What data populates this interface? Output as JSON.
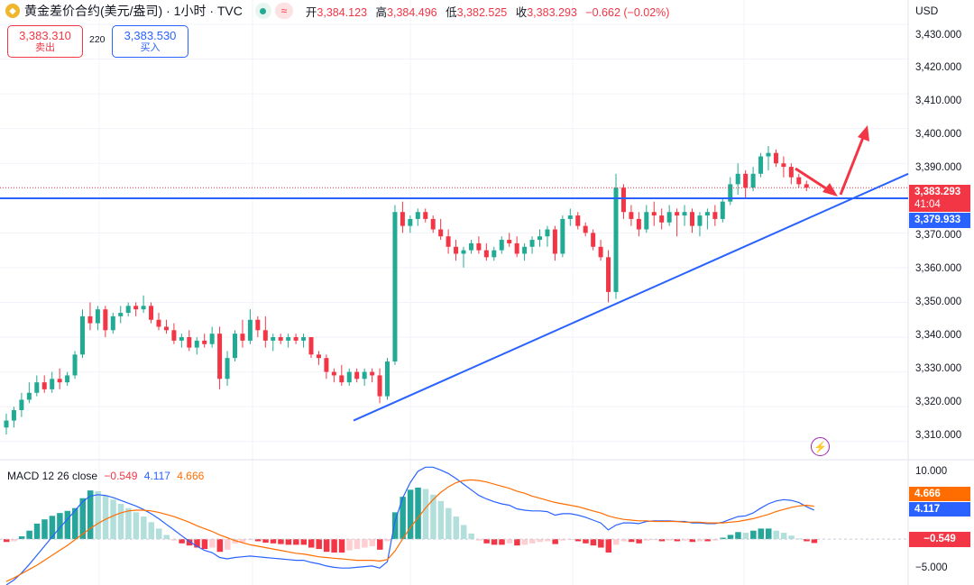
{
  "header": {
    "logo_glyph": "◆",
    "title": "黄金差价合约(美元/盎司) · 1小时 · TVC",
    "wave_glyph": "≈",
    "ohlc": [
      {
        "label": "开",
        "value": "3,384.123"
      },
      {
        "label": "高",
        "value": "3,384.496"
      },
      {
        "label": "低",
        "value": "3,382.525"
      },
      {
        "label": "收",
        "value": "3,383.293"
      }
    ],
    "change": "−0.662 (−0.02%)"
  },
  "trade": {
    "sell_price": "3,383.310",
    "sell_label": "卖出",
    "spread": "220",
    "buy_price": "3,383.530",
    "buy_label": "买入"
  },
  "currency": "USD",
  "price_axis": {
    "labels": [
      "3,430.000",
      "3,420.000",
      "3,410.000",
      "3,400.000",
      "3,390.000",
      "3,370.000",
      "3,360.000",
      "3,350.000",
      "3,340.000",
      "3,330.000",
      "3,320.000",
      "3,310.000"
    ]
  },
  "price_tags": {
    "last_price": "3,383.293",
    "countdown": "41:04",
    "line_price": "3,379.933"
  },
  "macd": {
    "name": "MACD 12 26 close",
    "hist": "−0.549",
    "macd": "4.117",
    "signal": "4.666",
    "axis": [
      "10.000",
      "−5.000"
    ],
    "tags": {
      "signal": "4.666",
      "macd": "4.117",
      "hist": "−0.549"
    }
  },
  "colors": {
    "up": "#22ab94",
    "down": "#f23645",
    "trendline": "#2962ff",
    "macd_line": "#2962ff",
    "signal_line": "#ff6d00",
    "arrow": "#f23645"
  },
  "bolt_glyph": "⚡",
  "chart_data": {
    "type": "candlestick",
    "timeframe": "1小时",
    "ylim": [
      3305,
      3437
    ],
    "candles_ohlc": [
      [
        3314,
        3318,
        3312,
        3316
      ],
      [
        3316,
        3320,
        3314,
        3319
      ],
      [
        3319,
        3324,
        3317,
        3322
      ],
      [
        3322,
        3327,
        3321,
        3324
      ],
      [
        3324,
        3329,
        3323,
        3327
      ],
      [
        3327,
        3329,
        3324,
        3325
      ],
      [
        3325,
        3330,
        3324,
        3328
      ],
      [
        3328,
        3331,
        3325,
        3327
      ],
      [
        3327,
        3330,
        3326,
        3329
      ],
      [
        3329,
        3336,
        3328,
        3335
      ],
      [
        3335,
        3348,
        3334,
        3346
      ],
      [
        3346,
        3350,
        3342,
        3344
      ],
      [
        3344,
        3349,
        3342,
        3348
      ],
      [
        3348,
        3349,
        3340,
        3342
      ],
      [
        3342,
        3347,
        3341,
        3346
      ],
      [
        3346,
        3349,
        3344,
        3347
      ],
      [
        3347,
        3350,
        3346,
        3349
      ],
      [
        3349,
        3350,
        3346,
        3348
      ],
      [
        3348,
        3352,
        3347,
        3349
      ],
      [
        3349,
        3350,
        3344,
        3345
      ],
      [
        3345,
        3347,
        3342,
        3343
      ],
      [
        3343,
        3345,
        3341,
        3342
      ],
      [
        3342,
        3344,
        3338,
        3339
      ],
      [
        3339,
        3341,
        3337,
        3340
      ],
      [
        3340,
        3342,
        3336,
        3337
      ],
      [
        3337,
        3340,
        3335,
        3339
      ],
      [
        3339,
        3341,
        3337,
        3338
      ],
      [
        3338,
        3343,
        3337,
        3341
      ],
      [
        3341,
        3343,
        3325,
        3328
      ],
      [
        3328,
        3336,
        3326,
        3334
      ],
      [
        3334,
        3342,
        3333,
        3341
      ],
      [
        3341,
        3345,
        3337,
        3339
      ],
      [
        3339,
        3348,
        3338,
        3345
      ],
      [
        3345,
        3346,
        3340,
        3342
      ],
      [
        3342,
        3346,
        3337,
        3339
      ],
      [
        3339,
        3341,
        3336,
        3340
      ],
      [
        3340,
        3341,
        3338,
        3339
      ],
      [
        3339,
        3341,
        3337,
        3340
      ],
      [
        3340,
        3341,
        3338,
        3339
      ],
      [
        3339,
        3341,
        3337,
        3340
      ],
      [
        3340,
        3340,
        3334,
        3335
      ],
      [
        3335,
        3336,
        3332,
        3334
      ],
      [
        3334,
        3335,
        3328,
        3330
      ],
      [
        3330,
        3331,
        3327,
        3329
      ],
      [
        3329,
        3332,
        3326,
        3327
      ],
      [
        3327,
        3331,
        3326,
        3330
      ],
      [
        3330,
        3331,
        3327,
        3328
      ],
      [
        3328,
        3331,
        3326,
        3330
      ],
      [
        3330,
        3331,
        3327,
        3329
      ],
      [
        3329,
        3331,
        3321,
        3323
      ],
      [
        3323,
        3334,
        3322,
        3333
      ],
      [
        3333,
        3378,
        3332,
        3376
      ],
      [
        3376,
        3379,
        3370,
        3372
      ],
      [
        3372,
        3375,
        3370,
        3374
      ],
      [
        3374,
        3377,
        3372,
        3376
      ],
      [
        3376,
        3377,
        3373,
        3374
      ],
      [
        3374,
        3375,
        3370,
        3371
      ],
      [
        3371,
        3374,
        3368,
        3369
      ],
      [
        3369,
        3371,
        3364,
        3366
      ],
      [
        3366,
        3368,
        3362,
        3364
      ],
      [
        3364,
        3366,
        3360,
        3365
      ],
      [
        3365,
        3368,
        3364,
        3367
      ],
      [
        3367,
        3369,
        3364,
        3365
      ],
      [
        3365,
        3367,
        3362,
        3363
      ],
      [
        3363,
        3366,
        3362,
        3365
      ],
      [
        3365,
        3369,
        3364,
        3368
      ],
      [
        3368,
        3370,
        3366,
        3367
      ],
      [
        3367,
        3369,
        3363,
        3364
      ],
      [
        3364,
        3367,
        3362,
        3366
      ],
      [
        3366,
        3369,
        3364,
        3368
      ],
      [
        3368,
        3371,
        3366,
        3369
      ],
      [
        3369,
        3372,
        3366,
        3371
      ],
      [
        3371,
        3372,
        3362,
        3364
      ],
      [
        3364,
        3375,
        3363,
        3374
      ],
      [
        3374,
        3377,
        3372,
        3375
      ],
      [
        3375,
        3376,
        3371,
        3372
      ],
      [
        3372,
        3373,
        3369,
        3370
      ],
      [
        3370,
        3371,
        3365,
        3366
      ],
      [
        3366,
        3368,
        3362,
        3363
      ],
      [
        3363,
        3365,
        3350,
        3353
      ],
      [
        3353,
        3387,
        3351,
        3383
      ],
      [
        3383,
        3384,
        3374,
        3376
      ],
      [
        3376,
        3378,
        3372,
        3374
      ],
      [
        3374,
        3376,
        3369,
        3371
      ],
      [
        3371,
        3378,
        3370,
        3376
      ],
      [
        3376,
        3379,
        3372,
        3375
      ],
      [
        3375,
        3377,
        3371,
        3373
      ],
      [
        3373,
        3378,
        3372,
        3376
      ],
      [
        3376,
        3377,
        3369,
        3375
      ],
      [
        3375,
        3378,
        3372,
        3376
      ],
      [
        3376,
        3377,
        3370,
        3372
      ],
      [
        3372,
        3376,
        3369,
        3375
      ],
      [
        3375,
        3377,
        3371,
        3376
      ],
      [
        3376,
        3378,
        3372,
        3374
      ],
      [
        3374,
        3380,
        3373,
        3379
      ],
      [
        3379,
        3386,
        3378,
        3384
      ],
      [
        3384,
        3390,
        3381,
        3387
      ],
      [
        3387,
        3388,
        3380,
        3383
      ],
      [
        3383,
        3389,
        3382,
        3387
      ],
      [
        3387,
        3393,
        3386,
        3392
      ],
      [
        3392,
        3395,
        3388,
        3393
      ],
      [
        3393,
        3394,
        3389,
        3390
      ],
      [
        3390,
        3392,
        3386,
        3389
      ],
      [
        3389,
        3390,
        3384,
        3386
      ],
      [
        3386,
        3387,
        3383,
        3384
      ],
      [
        3384,
        3385,
        3382,
        3383
      ]
    ],
    "trendline_from": 3316,
    "trendline_to": 3387,
    "horizontal_line": 3379.933,
    "macd_ylim": [
      -6.5,
      11
    ],
    "macd_hist": [
      -0.4,
      -0.3,
      0.4,
      1.2,
      2.2,
      2.8,
      3.3,
      3.7,
      4.0,
      4.4,
      5.8,
      6.9,
      6.8,
      6.2,
      5.6,
      5.0,
      4.4,
      3.8,
      3.2,
      2.4,
      1.5,
      0.6,
      -0.2,
      -0.6,
      -0.9,
      -1.2,
      -1.4,
      -1.2,
      -1.8,
      -1.5,
      -0.6,
      -0.4,
      -0.1,
      -0.3,
      -0.5,
      -0.6,
      -0.7,
      -0.8,
      -0.8,
      -0.8,
      -1.2,
      -1.4,
      -1.8,
      -1.9,
      -1.9,
      -1.6,
      -1.4,
      -1.2,
      -1.0,
      -1.5,
      -0.3,
      3.8,
      6.0,
      7.0,
      7.3,
      7.1,
      6.3,
      5.4,
      4.4,
      3.2,
      2.0,
      0.8,
      -0.2,
      -0.6,
      -0.8,
      -0.8,
      -0.6,
      -0.9,
      -0.8,
      -0.6,
      -0.4,
      -0.3,
      -0.7,
      -0.2,
      -0.1,
      -0.3,
      -0.6,
      -0.9,
      -1.2,
      -1.9,
      -0.8,
      -0.3,
      -0.4,
      -0.6,
      -0.2,
      -0.1,
      -0.3,
      -0.2,
      -0.3,
      -0.2,
      -0.4,
      -0.3,
      -0.3,
      -0.2,
      0.2,
      0.6,
      1.0,
      0.9,
      1.2,
      1.5,
      1.5,
      1.2,
      0.9,
      0.5,
      0.1,
      -0.3,
      -0.549
    ],
    "macd_line": [
      -6.5,
      -5.8,
      -4.8,
      -3.6,
      -2.3,
      -1.0,
      0.3,
      1.6,
      2.8,
      4.0,
      5.3,
      6.1,
      6.3,
      6.2,
      5.9,
      5.5,
      5.1,
      4.7,
      4.2,
      3.6,
      2.9,
      2.1,
      1.3,
      0.5,
      -0.3,
      -1.0,
      -1.6,
      -1.9,
      -2.6,
      -2.8,
      -2.6,
      -2.5,
      -2.4,
      -2.5,
      -2.6,
      -2.7,
      -2.8,
      -2.9,
      -3.0,
      -3.0,
      -3.3,
      -3.5,
      -3.8,
      -4.0,
      -4.1,
      -4.1,
      -4.0,
      -3.9,
      -3.8,
      -4.1,
      -3.2,
      2.5,
      5.8,
      8.0,
      9.6,
      10.2,
      10.2,
      9.8,
      9.3,
      8.6,
      7.8,
      7.0,
      6.2,
      5.7,
      5.3,
      5.0,
      4.8,
      4.3,
      4.1,
      4.0,
      4.0,
      3.9,
      3.4,
      3.6,
      3.6,
      3.4,
      3.1,
      2.7,
      2.3,
      1.3,
      2.0,
      2.3,
      2.3,
      2.2,
      2.5,
      2.6,
      2.6,
      2.6,
      2.5,
      2.5,
      2.3,
      2.3,
      2.2,
      2.2,
      2.4,
      2.8,
      3.2,
      3.3,
      3.7,
      4.4,
      5.0,
      5.4,
      5.6,
      5.5,
      5.2,
      4.6,
      4.117
    ],
    "signal_line": [
      -6.0,
      -5.5,
      -4.9,
      -4.3,
      -3.7,
      -3.0,
      -2.3,
      -1.6,
      -0.9,
      -0.1,
      0.7,
      1.5,
      2.2,
      2.8,
      3.3,
      3.7,
      4.0,
      4.1,
      4.1,
      4.0,
      3.8,
      3.5,
      3.2,
      2.8,
      2.4,
      1.9,
      1.5,
      1.1,
      0.6,
      0.2,
      -0.2,
      -0.5,
      -0.8,
      -1.0,
      -1.2,
      -1.4,
      -1.6,
      -1.8,
      -2.0,
      -2.1,
      -2.3,
      -2.5,
      -2.6,
      -2.7,
      -2.8,
      -2.9,
      -3.0,
      -3.0,
      -3.0,
      -3.1,
      -2.9,
      -1.7,
      0.0,
      1.6,
      3.0,
      4.4,
      5.6,
      6.6,
      7.4,
      8.0,
      8.3,
      8.4,
      8.3,
      8.1,
      7.8,
      7.5,
      7.2,
      6.8,
      6.5,
      6.1,
      5.8,
      5.5,
      5.2,
      5.0,
      4.8,
      4.6,
      4.3,
      4.0,
      3.7,
      3.3,
      3.0,
      2.8,
      2.7,
      2.6,
      2.6,
      2.5,
      2.5,
      2.5,
      2.5,
      2.4,
      2.4,
      2.4,
      2.3,
      2.3,
      2.3,
      2.4,
      2.5,
      2.7,
      2.9,
      3.2,
      3.5,
      3.9,
      4.2,
      4.5,
      4.7,
      4.8,
      4.666
    ]
  }
}
